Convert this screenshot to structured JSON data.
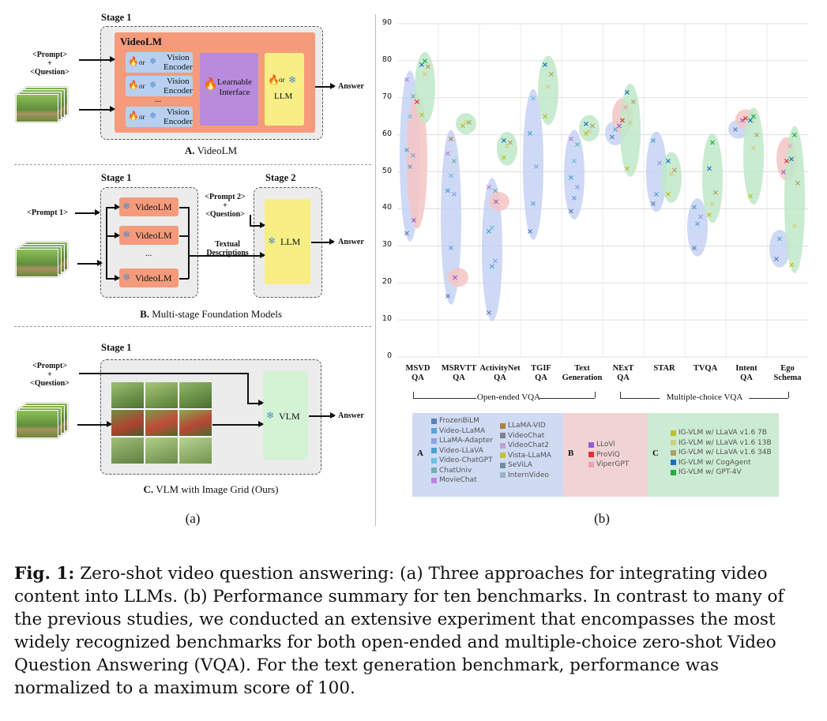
{
  "panel_a": {
    "a": {
      "stage_label": "Stage 1",
      "prompt_text": "<Prompt>\n+\n<Question>",
      "videolm_title": "VideoLM",
      "encoder_label": "Vision\nEncoder",
      "or_text": "or",
      "ellipsis": "...",
      "interface_label": "Learnable\nInterface",
      "llm_label": "LLM",
      "answer": "Answer",
      "caption_letter": "A.",
      "caption_text": "VideoLM"
    },
    "b": {
      "stage1_label": "Stage 1",
      "stage2_label": "Stage 2",
      "prompt1": "<Prompt 1>",
      "prompt2": "<Prompt 2>\n+\n<Question>",
      "videolm": "VideoLM",
      "ellipsis": "...",
      "textual": "Textual\nDescriptions",
      "llm": "LLM",
      "answer": "Answer",
      "caption_letter": "B.",
      "caption_text": "Multi-stage Foundation Models"
    },
    "c": {
      "stage_label": "Stage 1",
      "prompt_text": "<Prompt>\n+\n<Question>",
      "vlm": "VLM",
      "answer": "Answer",
      "caption_letter": "C.",
      "caption_text": "VLM with Image Grid (Ours)"
    },
    "label": "(a)"
  },
  "panel_b": {
    "label": "(b)",
    "group_open": "Open-ended VQA",
    "group_mc": "Multiple-choice VQA",
    "legend": {
      "A": {
        "letter": "A",
        "col1": [
          {
            "name": "FrozenBiLM",
            "color": "#5b7fb8"
          },
          {
            "name": "Video-LLaMA",
            "color": "#5aa3d8"
          },
          {
            "name": "LLaMA-Adapter",
            "color": "#8fa0e0"
          },
          {
            "name": "Video-LLaVA",
            "color": "#4aa0d0"
          },
          {
            "name": "Video-ChatGPT",
            "color": "#6cc0e0"
          },
          {
            "name": "ChatUniv",
            "color": "#70b0b0"
          },
          {
            "name": "MovieChat",
            "color": "#c080e0"
          }
        ],
        "col2": [
          {
            "name": "LLaMA-VID",
            "color": "#b08040"
          },
          {
            "name": "VideoChat",
            "color": "#808090"
          },
          {
            "name": "VideoChat2",
            "color": "#c0a0d0"
          },
          {
            "name": "Vista-LLaMA",
            "color": "#c0c040"
          },
          {
            "name": "SeViLA",
            "color": "#7090a0"
          },
          {
            "name": "InternVideo",
            "color": "#a0b0c0"
          }
        ]
      },
      "B": {
        "letter": "B",
        "items": [
          {
            "name": "LLoVi",
            "color": "#9060d0"
          },
          {
            "name": "ProViQ",
            "color": "#e03030"
          },
          {
            "name": "ViperGPT",
            "color": "#f0a0b0"
          }
        ]
      },
      "C": {
        "letter": "C",
        "items": [
          {
            "name": "IG-VLM w/ LLaVA v1.6 7B",
            "color": "#c0c020"
          },
          {
            "name": "IG-VLM w/ LLaVA v1.6 13B",
            "color": "#d0d080"
          },
          {
            "name": "IG-VLM w/ LLaVA v1.6 34B",
            "color": "#b0a060"
          },
          {
            "name": "IG-VLM w/ CogAgent",
            "color": "#1a70c0"
          },
          {
            "name": "IG-VLM w/ GPT-4V",
            "color": "#20b040"
          }
        ]
      }
    }
  },
  "chart_data": {
    "type": "scatter",
    "ylim": [
      0,
      90
    ],
    "yticks": [
      "0",
      "10",
      "20",
      "30",
      "40",
      "50",
      "60",
      "70",
      "80",
      "90"
    ],
    "categories": [
      "MSVD\nQA",
      "MSRVTT\nQA",
      "ActivityNet\nQA",
      "TGIF\nQA",
      "Text\nGeneration",
      "NExT\nQA",
      "STAR",
      "TVQA",
      "Intent\nQA",
      "Ego\nSchema"
    ],
    "groups": {
      "A": [
        [
          33.5,
          51.5,
          54.5,
          56,
          65,
          70.5,
          75
        ],
        [
          16.5,
          29.5,
          44,
          45,
          49,
          53,
          55,
          59
        ],
        [
          12,
          24.5,
          26,
          34,
          35,
          45,
          46
        ],
        [
          34,
          41.5,
          51.5,
          60.5,
          70
        ],
        [
          39.5,
          43,
          46,
          48.5,
          53,
          57.5,
          59
        ],
        [
          59.5,
          61.5
        ],
        [
          41.5,
          44,
          52.5,
          58.5
        ],
        [
          29.5,
          36,
          38,
          40.5
        ],
        [
          61.5
        ],
        [
          26.5,
          32
        ]
      ],
      "B": [
        [
          37,
          69
        ],
        [
          21.5
        ],
        [
          42
        ],
        [],
        [],
        [
          62.5,
          64,
          67.5
        ],
        [],
        [],
        [
          64,
          64.5
        ],
        [
          50,
          53,
          57
        ]
      ],
      "C": [
        [
          65.5,
          76.5,
          78.5,
          79,
          80
        ],
        [
          62.5,
          63.5,
          63.5
        ],
        [
          54,
          57,
          58,
          58.5
        ],
        [
          65,
          73,
          76.5,
          79
        ],
        [
          60.5,
          61,
          62.5,
          63
        ],
        [
          51,
          63.5,
          69,
          71.5
        ],
        [
          44,
          49.5,
          50.5,
          53
        ],
        [
          38.5,
          41.5,
          44.5,
          51,
          58
        ],
        [
          43.5,
          56.5,
          60,
          64,
          65
        ],
        [
          25,
          35.5,
          47,
          53.5,
          60
        ]
      ]
    }
  },
  "figure_caption": {
    "label": "Fig. 1:",
    "text": "Zero-shot video question answering: (a) Three approaches for integrating video content into LLMs. (b) Performance summary for ten benchmarks. In contrast to many of the previous studies, we conducted an extensive experiment that encompasses the most widely recognized benchmarks for both open-ended and multiple-choice zero-shot Video Question Answering (VQA). For the text generation benchmark, performance was normalized to a maximum score of 100."
  }
}
